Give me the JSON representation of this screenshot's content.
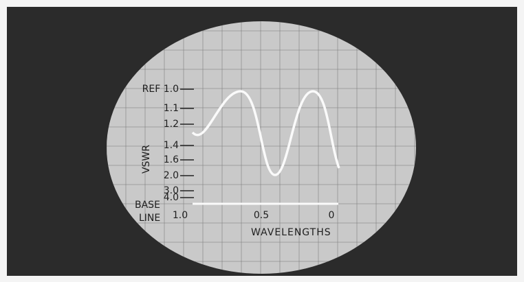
{
  "screen": {
    "y_axis_title": "VSWR",
    "y_labels": [
      "REF 1.0",
      "1.1",
      "1.2",
      "1.4",
      "1.6",
      "2.0",
      "3.0",
      "4.0"
    ],
    "baseline_label": [
      "BASE",
      "LINE"
    ],
    "x_labels": [
      "1.0",
      "0.5",
      "0"
    ],
    "x_axis_title": "WAVELENGTHS"
  }
}
